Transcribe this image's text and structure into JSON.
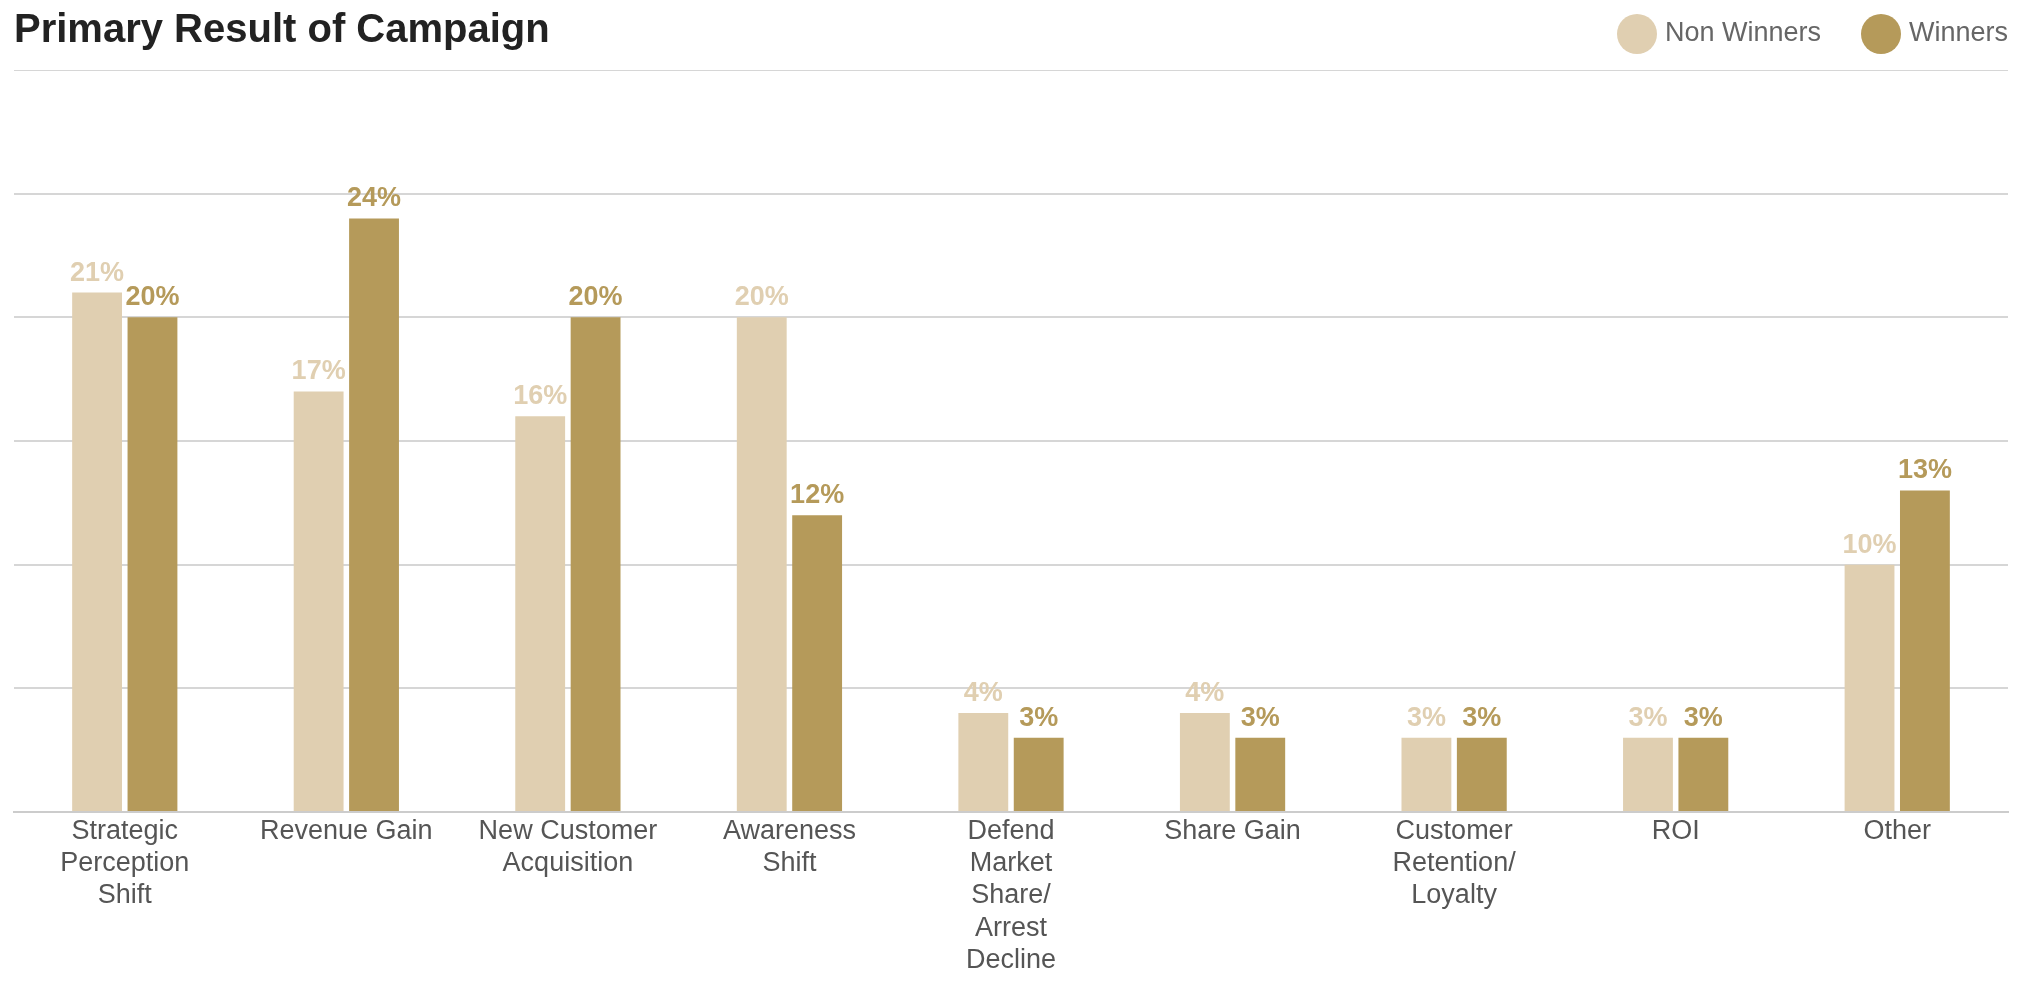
{
  "chart_data": {
    "type": "bar",
    "title": "Primary Result of Campaign",
    "categories": [
      "Strategic Perception Shift",
      "Revenue Gain",
      "New Customer Acquisition",
      "Awareness Shift",
      "Defend Market Share/ Arrest Decline",
      "Share Gain",
      "Customer Retention/ Loyalty",
      "ROI",
      "Other"
    ],
    "series": [
      {
        "name": "Non Winners",
        "color": "#e0cfb1",
        "values": [
          21,
          17,
          16,
          20,
          4,
          4,
          3,
          3,
          10
        ],
        "value_labels": [
          "21%",
          "17%",
          "16%",
          "20%",
          "4%",
          "4%",
          "3%",
          "3%",
          "10%"
        ]
      },
      {
        "name": "Winners",
        "color": "#b59a5a",
        "values": [
          20,
          24,
          20,
          12,
          3,
          3,
          3,
          3,
          13
        ],
        "value_labels": [
          "20%",
          "24%",
          "20%",
          "12%",
          "3%",
          "3%",
          "3%",
          "3%",
          "13%"
        ]
      }
    ],
    "tick_labels": "x",
    "grid": "y",
    "legend": "top right"
  }
}
